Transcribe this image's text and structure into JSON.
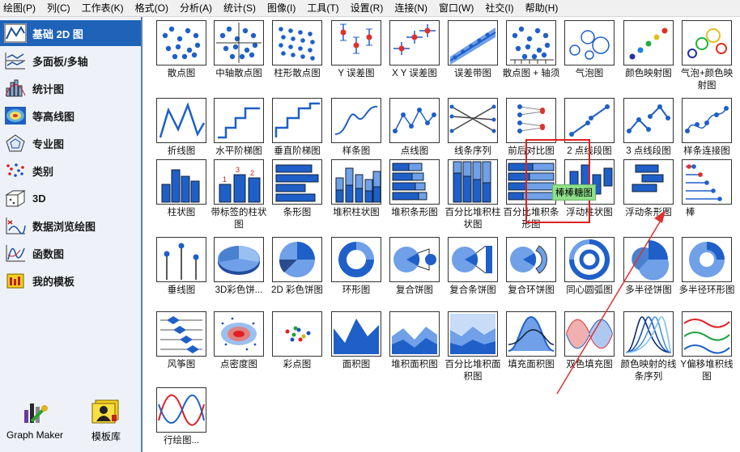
{
  "menu": [
    "绘图(P)",
    "列(C)",
    "工作表(K)",
    "格式(O)",
    "分析(A)",
    "统计(S)",
    "图像(I)",
    "工具(T)",
    "设置(R)",
    "连接(N)",
    "窗口(W)",
    "社交(I)",
    "帮助(H)"
  ],
  "sidebar": {
    "items": [
      {
        "label": "基础 2D 图",
        "icon": "line-chart-icon",
        "active": true
      },
      {
        "label": "多面板/多轴",
        "icon": "multi-panel-icon"
      },
      {
        "label": "统计图",
        "icon": "statistics-icon"
      },
      {
        "label": "等高线图",
        "icon": "contour-icon"
      },
      {
        "label": "专业图",
        "icon": "specialized-icon"
      },
      {
        "label": "类别",
        "icon": "categorical-icon"
      },
      {
        "label": "3D",
        "icon": "3d-icon"
      },
      {
        "label": "数据浏览绘图",
        "icon": "data-explore-icon"
      },
      {
        "label": "函数图",
        "icon": "function-icon"
      },
      {
        "label": "我的模板",
        "icon": "my-templates-icon"
      }
    ],
    "graph_maker": "Graph Maker",
    "template_library": "模板库"
  },
  "gallery": {
    "rows": [
      [
        "散点图",
        "中轴散点图",
        "柱形散点图",
        "Y 误差图",
        "X Y 误差图",
        "误差带图",
        "散点图 + 轴须",
        "气泡图",
        "颜色映射图",
        "气泡+颜色映射图"
      ],
      [
        "折线图",
        "水平阶梯图",
        "垂直阶梯图",
        "样条图",
        "点线图",
        "线条序列",
        "前后对比图",
        "2 点线段图",
        "3 点线段图",
        "样条连接图"
      ],
      [
        "柱状图",
        "带标签的柱状图",
        "条形图",
        "堆积柱状图",
        "堆积条形图",
        "百分比堆积柱状图",
        "百分比堆积条形图",
        "浮动柱状图",
        "浮动条形图",
        "棒"
      ],
      [
        "垂线图",
        "3D彩色饼...",
        "2D 彩色饼图",
        "环形图",
        "复合饼图",
        "复合条饼图",
        "复合环饼图",
        "同心圆弧图",
        "多半径饼图",
        "多半径环形图"
      ],
      [
        "风筝图",
        "点密度图",
        "彩点图",
        "面积图",
        "堆积面积图",
        "百分比堆积面积图",
        "填充面积图",
        "双色填充图",
        "颜色映射的线条序列",
        "Y偏移堆积线图"
      ],
      [
        "行绘图..."
      ]
    ],
    "tooltip": "棒棒糖图"
  }
}
